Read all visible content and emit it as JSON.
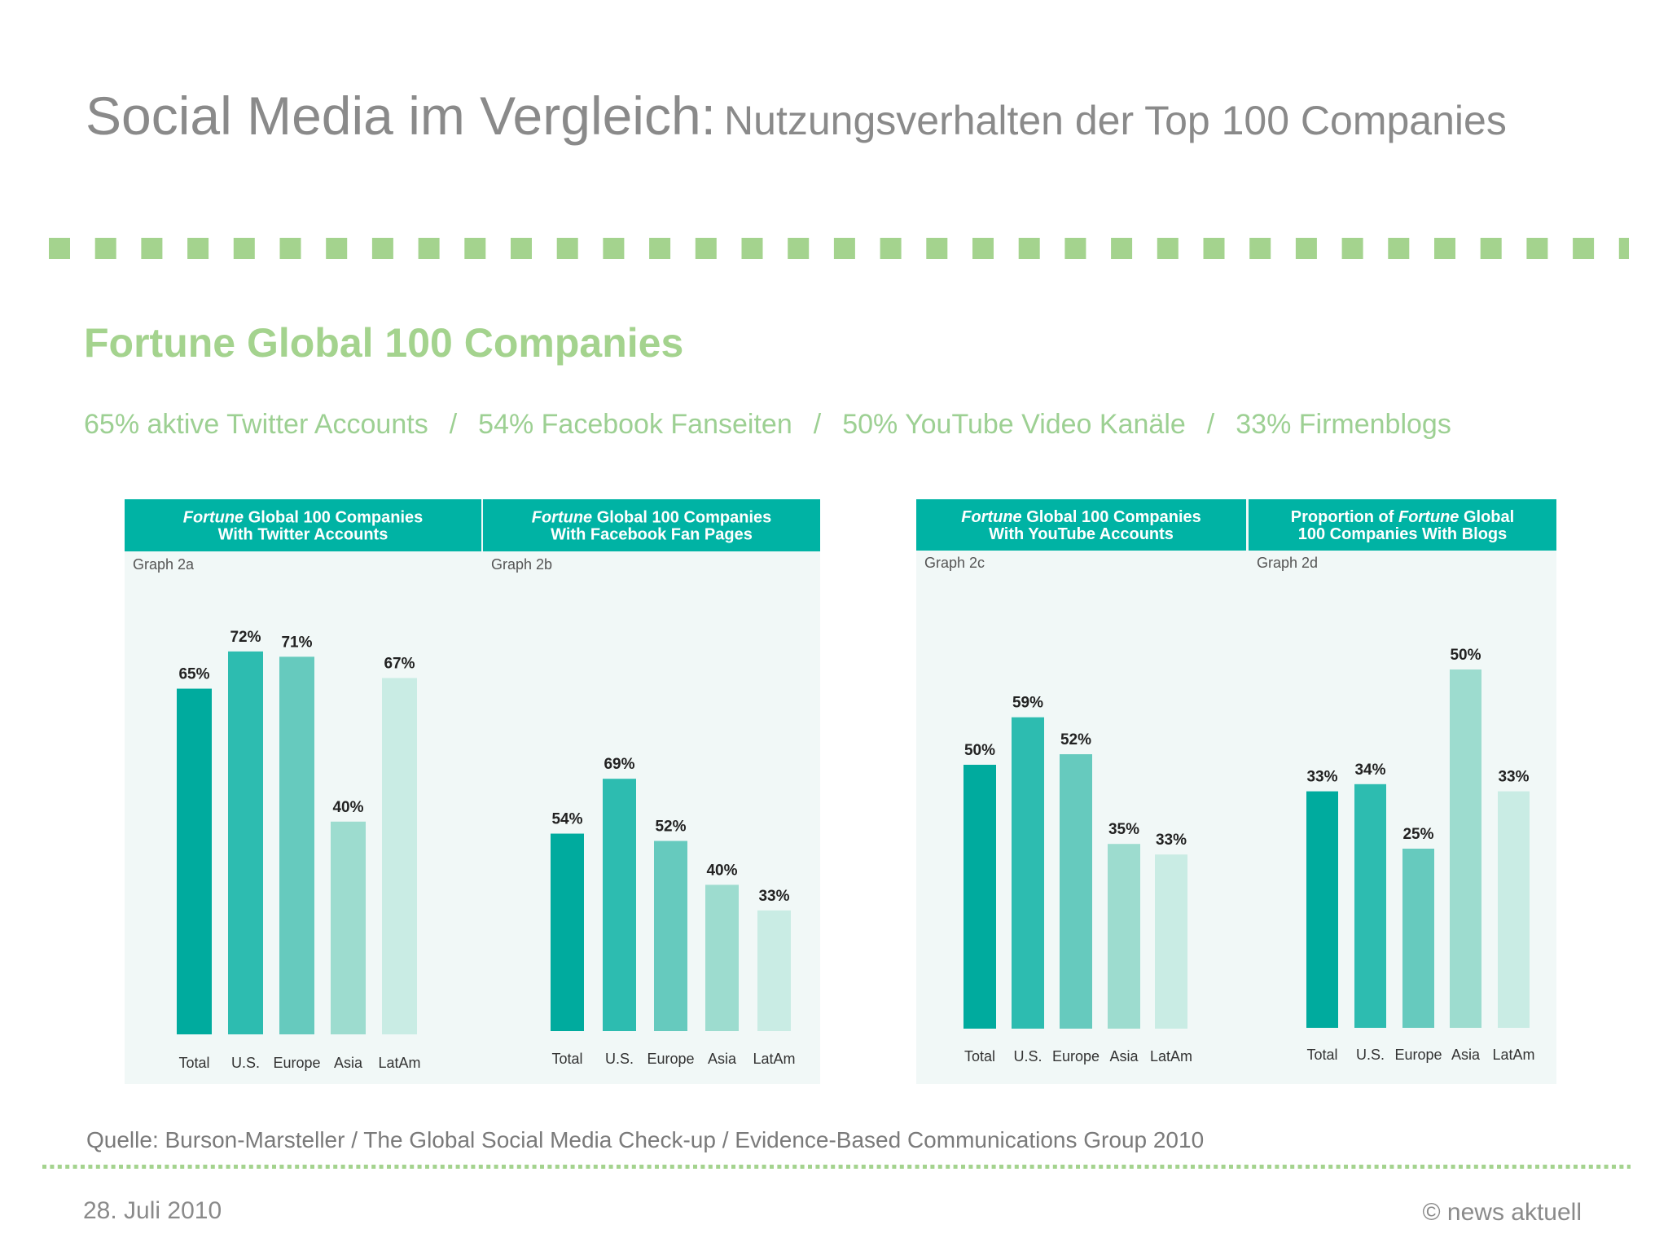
{
  "header": {
    "title_main": "Social Media im Vergleich:",
    "title_sub": "Nutzungsverhalten der Top 100 Companies"
  },
  "section": {
    "title": "Fortune Global 100 Companies",
    "stats": [
      "65% aktive Twitter Accounts",
      "54% Facebook Fanseiten",
      "50% YouTube Video Kanäle",
      "33% Firmenblogs"
    ],
    "separator": "/"
  },
  "footer": {
    "source": "Quelle: Burson-Marsteller / The Global Social Media Check-up / Evidence-Based Communications Group 2010",
    "date": "28. Juli 2010",
    "copyright": "© news aktuell"
  },
  "colors": {
    "header_teal": "#00b3a4",
    "bar_shades": [
      "#00ab9e",
      "#2dbcb0",
      "#66cabe",
      "#9ddccf",
      "#c9ece4"
    ],
    "accent_green": "#a4d38e",
    "title_gray": "#8a8a8a"
  },
  "chart_data": [
    {
      "type": "bar",
      "title": "Fortune Global 100 Companies With Twitter Accounts",
      "subtitle": "Graph 2a",
      "categories": [
        "Total",
        "U.S.",
        "Europe",
        "Asia",
        "LatAm"
      ],
      "values": [
        65,
        72,
        71,
        40,
        67
      ],
      "data_labels": [
        "65%",
        "72%",
        "71%",
        "40%",
        "67%"
      ],
      "ylim": [
        0,
        100
      ]
    },
    {
      "type": "bar",
      "title": "Fortune Global 100 Companies With Facebook Fan Pages",
      "subtitle": "Graph 2b",
      "categories": [
        "Total",
        "U.S.",
        "Europe",
        "Asia",
        "LatAm"
      ],
      "values": [
        54,
        69,
        52,
        40,
        33
      ],
      "data_labels": [
        "54%",
        "69%",
        "52%",
        "40%",
        "33%"
      ],
      "ylim": [
        0,
        100
      ]
    },
    {
      "type": "bar",
      "title": "Fortune Global 100 Companies With YouTube Accounts",
      "subtitle": "Graph 2c",
      "categories": [
        "Total",
        "U.S.",
        "Europe",
        "Asia",
        "LatAm"
      ],
      "values": [
        50,
        59,
        52,
        35,
        33
      ],
      "data_labels": [
        "50%",
        "59%",
        "52%",
        "35%",
        "33%"
      ],
      "ylim": [
        0,
        100
      ]
    },
    {
      "type": "bar",
      "title": "Proportion of Fortune Global 100 Companies With Blogs",
      "subtitle": "Graph 2d",
      "categories": [
        "Total",
        "U.S.",
        "Europe",
        "Asia",
        "LatAm"
      ],
      "values": [
        33,
        34,
        25,
        50,
        33
      ],
      "data_labels": [
        "33%",
        "34%",
        "25%",
        "50%",
        "33%"
      ],
      "ylim": [
        0,
        100
      ]
    }
  ]
}
